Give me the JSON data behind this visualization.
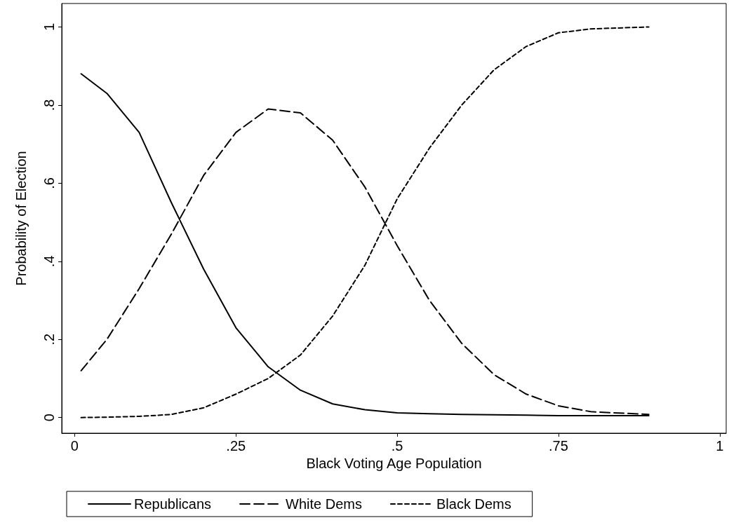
{
  "chart_data": {
    "type": "line",
    "xlabel": "Black Voting Age Population",
    "ylabel": "Probability of Election",
    "xlim": [
      -0.02,
      1.01
    ],
    "ylim": [
      -0.04,
      1.06
    ],
    "xticks": [
      {
        "value": 0,
        "label": "0"
      },
      {
        "value": 0.25,
        "label": ".25"
      },
      {
        "value": 0.5,
        "label": ".5"
      },
      {
        "value": 0.75,
        "label": ".75"
      },
      {
        "value": 1,
        "label": "1"
      }
    ],
    "yticks": [
      {
        "value": 0,
        "label": "0"
      },
      {
        "value": 0.2,
        "label": ".2"
      },
      {
        "value": 0.4,
        "label": ".4"
      },
      {
        "value": 0.6,
        "label": ".6"
      },
      {
        "value": 0.8,
        "label": ".8"
      },
      {
        "value": 1,
        "label": "1"
      }
    ],
    "grid": false,
    "legend": "bottom",
    "marker": "none",
    "x": [
      0.01,
      0.05,
      0.1,
      0.15,
      0.2,
      0.25,
      0.3,
      0.35,
      0.4,
      0.45,
      0.5,
      0.55,
      0.6,
      0.65,
      0.7,
      0.75,
      0.8,
      0.89
    ],
    "series": [
      {
        "name": "Republicans",
        "color": "#000000",
        "line_style": "solid",
        "values": [
          0.88,
          0.83,
          0.73,
          0.55,
          0.38,
          0.23,
          0.13,
          0.07,
          0.035,
          0.02,
          0.012,
          0.01,
          0.008,
          0.007,
          0.006,
          0.005,
          0.005,
          0.005
        ]
      },
      {
        "name": "White Dems",
        "color": "#000000",
        "line_style": "dashed",
        "values": [
          0.12,
          0.2,
          0.33,
          0.47,
          0.62,
          0.73,
          0.79,
          0.78,
          0.71,
          0.59,
          0.44,
          0.3,
          0.19,
          0.11,
          0.06,
          0.03,
          0.015,
          0.008
        ]
      },
      {
        "name": "Black Dems",
        "color": "#000000",
        "line_style": "dashed",
        "values": [
          0.0,
          0.001,
          0.003,
          0.008,
          0.025,
          0.06,
          0.1,
          0.16,
          0.26,
          0.39,
          0.56,
          0.69,
          0.8,
          0.89,
          0.95,
          0.985,
          0.995,
          1.0
        ]
      }
    ]
  }
}
